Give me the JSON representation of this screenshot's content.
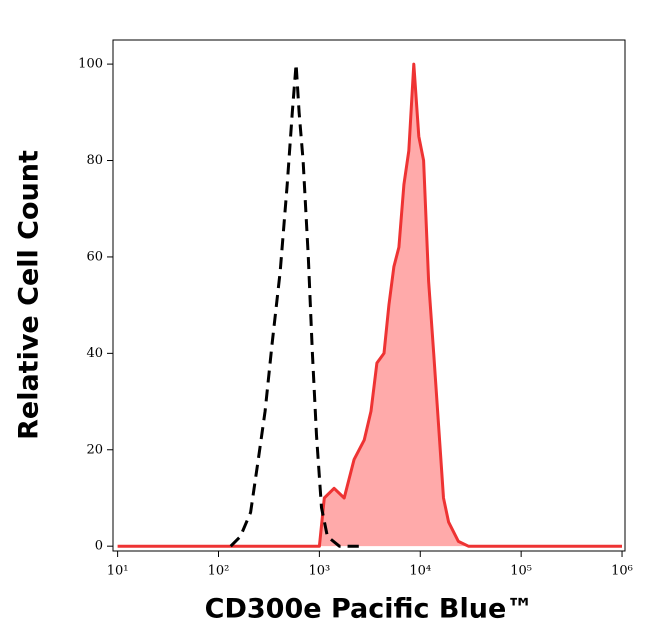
{
  "chart_data": {
    "type": "line",
    "xlabel": "CD300e Pacific Blue™",
    "ylabel": "Relative Cell Count",
    "xscale": "log",
    "xlim": [
      9,
      1070000
    ],
    "ylim": [
      -1,
      105
    ],
    "xticks": [
      {
        "value": 10,
        "label": "10¹"
      },
      {
        "value": 100,
        "label": "10²"
      },
      {
        "value": 1000,
        "label": "10³"
      },
      {
        "value": 10000,
        "label": "10⁴"
      },
      {
        "value": 100000,
        "label": "10⁵"
      },
      {
        "value": 1000000,
        "label": "10⁶"
      }
    ],
    "yticks": [
      0,
      20,
      40,
      60,
      80,
      100
    ],
    "series": [
      {
        "color": "#000000",
        "dash": true,
        "x": [
          132,
          165,
          208,
          248,
          290,
          340,
          409,
          480,
          539,
          588,
          630,
          690,
          776,
          852,
          937,
          1050,
          1200,
          1580,
          2460
        ],
        "values": [
          0,
          2,
          7,
          18,
          28,
          42,
          57,
          75,
          90,
          100,
          90,
          80,
          60,
          40,
          23,
          8,
          2,
          0,
          0
        ]
      },
      {
        "color": "#ee3333",
        "fill": "#ffaaaa",
        "x": [
          10,
          1000,
          1120,
          1400,
          1760,
          2210,
          2780,
          3250,
          3720,
          4370,
          4890,
          5480,
          6140,
          6880,
          7700,
          8620,
          9670,
          10800,
          12100,
          13600,
          15200,
          17000,
          19100,
          23900,
          30000,
          1000000
        ],
        "values": [
          0,
          0,
          10,
          12,
          10,
          18,
          22,
          28,
          38,
          40,
          50,
          58,
          62,
          75,
          82,
          100,
          85,
          80,
          55,
          40,
          25,
          10,
          5,
          1,
          0,
          0
        ]
      }
    ]
  }
}
